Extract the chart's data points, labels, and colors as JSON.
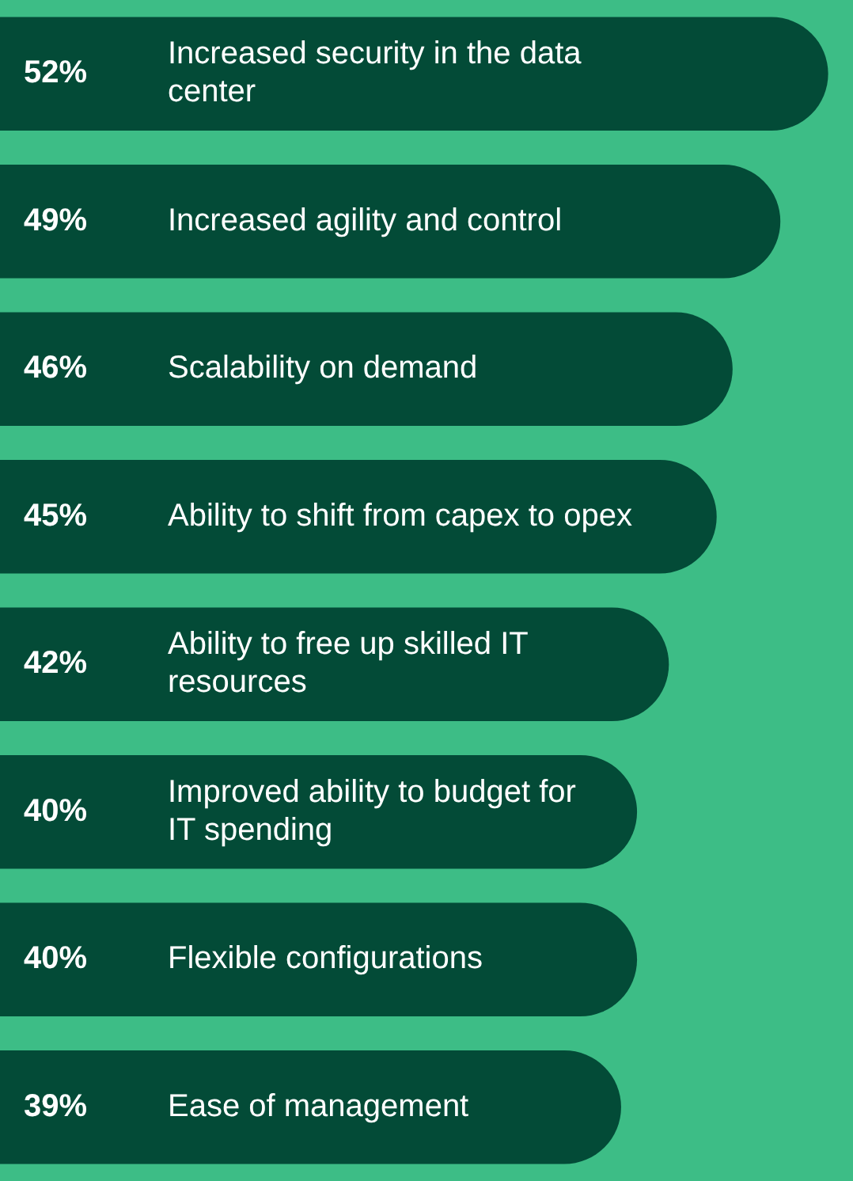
{
  "chart_data": {
    "type": "bar",
    "orientation": "horizontal",
    "color": "#034b37",
    "categories": [
      "Increased security in the data center",
      "Increased agility and control",
      "Scalability on demand",
      "Ability to shift from capex to opex",
      "Ability to free up skilled IT resources",
      "Improved ability to budget for IT spending",
      "Flexible configurations",
      "Ease of management"
    ],
    "values": [
      52,
      49,
      46,
      45,
      42,
      40,
      40,
      39
    ],
    "value_labels": [
      "52%",
      "49%",
      "46%",
      "45%",
      "42%",
      "40%",
      "40%",
      "39%"
    ]
  }
}
